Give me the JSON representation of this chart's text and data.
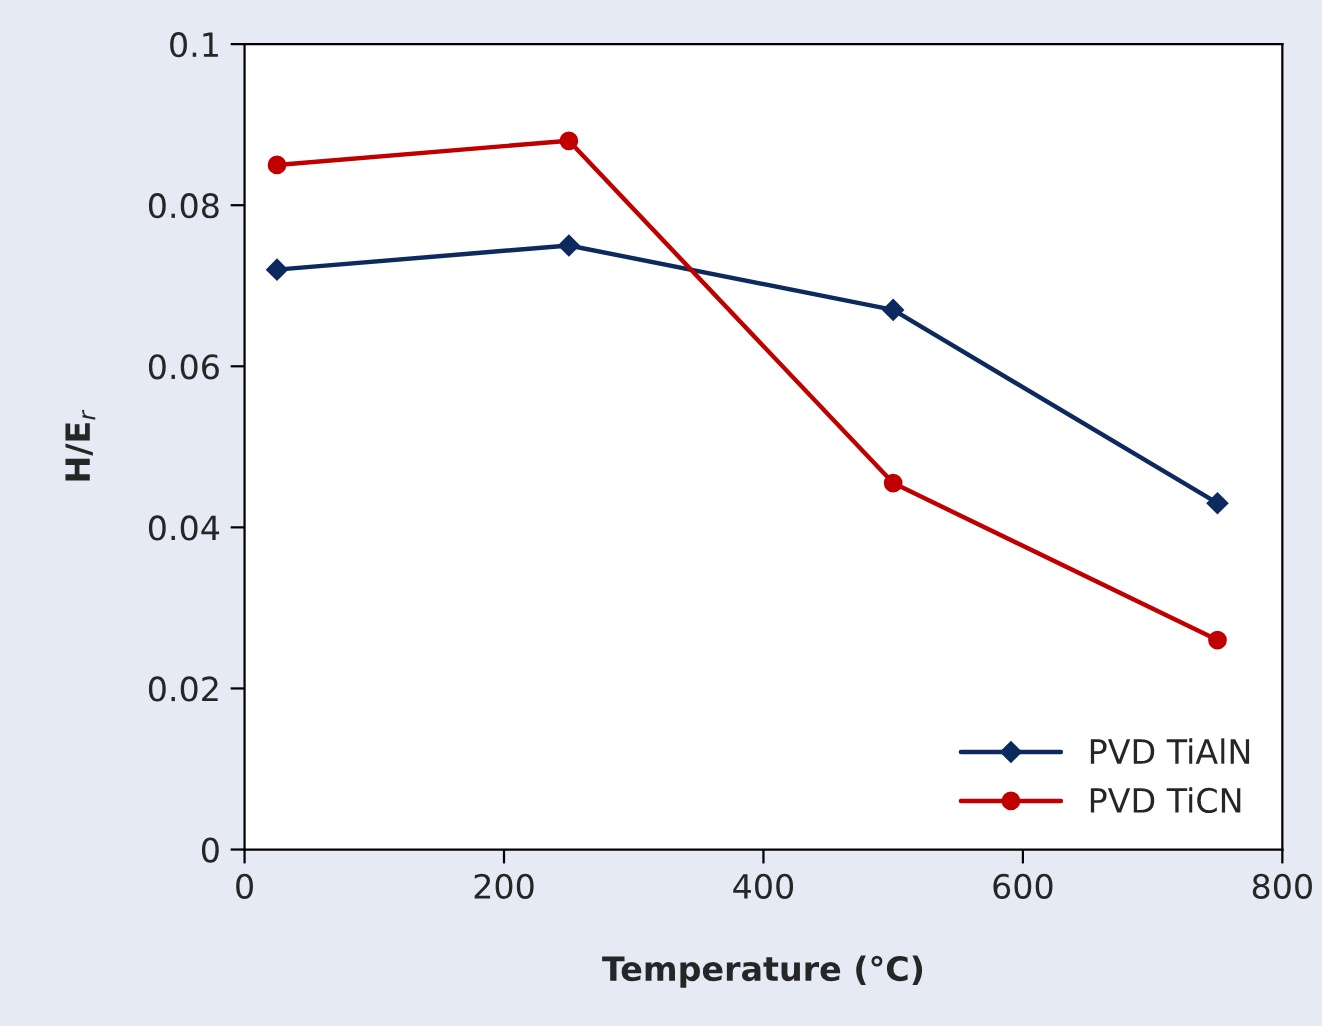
{
  "chart_data": {
    "type": "line",
    "xlabel": "Temperature (°C)",
    "ylabel": "H/E$_{r}$",
    "x": [
      25,
      250,
      500,
      750
    ],
    "series": [
      {
        "name": "PVD TiAlN",
        "color": "#0d2a5e",
        "values": [
          0.072,
          0.075,
          0.067,
          0.043
        ],
        "marker": "diamond"
      },
      {
        "name": "PVD TiCN",
        "color": "#c00000",
        "values": [
          0.085,
          0.088,
          0.0455,
          0.026
        ],
        "marker": "circle"
      }
    ],
    "xlim": [
      0,
      800
    ],
    "xticks": [
      0,
      200,
      400,
      600,
      800
    ],
    "ylim": [
      0,
      0.1
    ],
    "yticks": [
      0,
      0.02,
      0.04,
      0.06,
      0.08,
      0.1
    ],
    "grid": false,
    "legend": "bottom right",
    "line_style": "solid"
  }
}
